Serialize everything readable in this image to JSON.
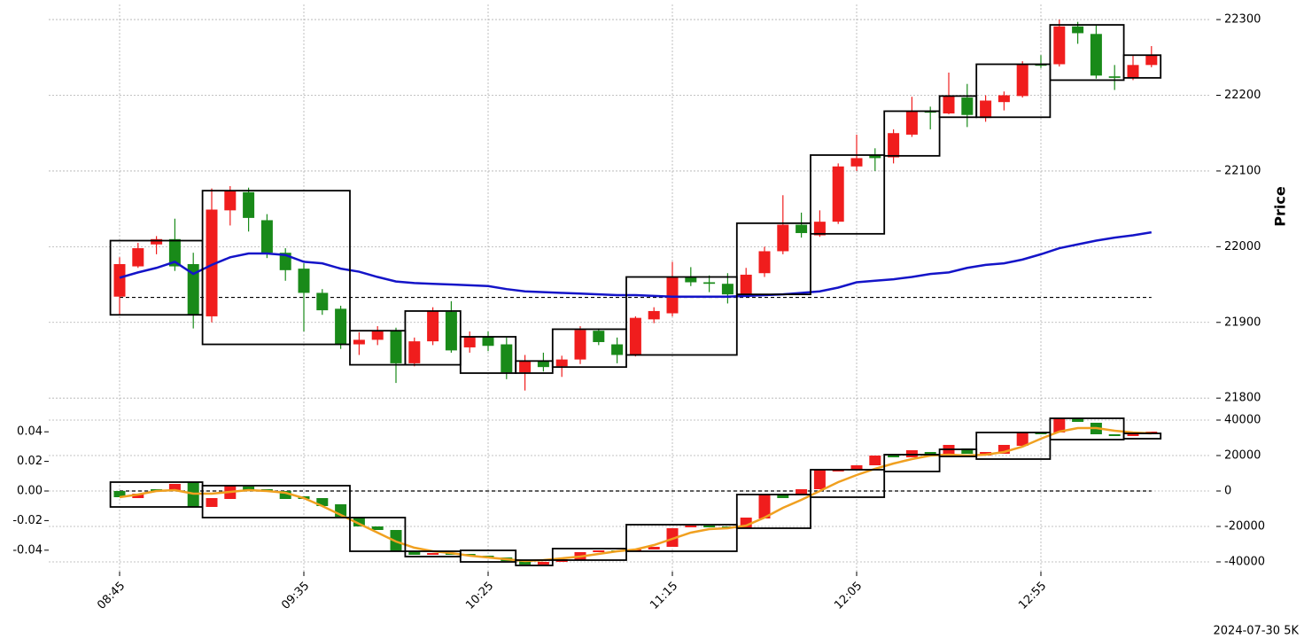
{
  "footer": "2024-07-30 5K",
  "chart_data": [
    {
      "type": "candlestick",
      "ylabel": "Price",
      "up_color": "#f01d1d",
      "down_color": "#198a19",
      "grid": true,
      "ylim": [
        21785,
        22320
      ],
      "yticks": [
        21800,
        21900,
        22000,
        22100,
        22200,
        22300
      ],
      "open": [
        21934,
        21974,
        22003,
        22010,
        21977,
        21908,
        22048,
        22072,
        22035,
        21992,
        21971,
        21939,
        21918,
        21871,
        21877,
        21889,
        21846,
        21875,
        21914,
        21867,
        21881,
        21871,
        21834,
        21849,
        21842,
        21851,
        21889,
        21871,
        21857,
        21904,
        21912,
        21960,
        21953,
        21951,
        21937,
        21965,
        21994,
        22029,
        22015,
        22033,
        22106,
        22121,
        22118,
        22148,
        22179,
        22176,
        22197,
        22170,
        22191,
        22199,
        22241,
        22241,
        22291,
        22281,
        22225,
        22223,
        22240
      ],
      "high": [
        21986,
        22005,
        22014,
        22037,
        21992,
        22077,
        22080,
        22078,
        22043,
        21998,
        21978,
        21944,
        21922,
        21887,
        21895,
        21893,
        21880,
        21920,
        21928,
        21888,
        21888,
        21880,
        21857,
        21860,
        21856,
        21895,
        21892,
        21880,
        21908,
        21920,
        21980,
        21973,
        21962,
        21965,
        21972,
        22000,
        22068,
        22045,
        22048,
        22110,
        22148,
        22130,
        22155,
        22198,
        22185,
        22230,
        22215,
        22200,
        22205,
        22245,
        22253,
        22300,
        22297,
        22292,
        22240,
        22252,
        22265
      ],
      "low": [
        21910,
        21972,
        21990,
        21968,
        21892,
        21900,
        22028,
        22020,
        21985,
        21955,
        21888,
        21910,
        21865,
        21857,
        21870,
        21820,
        21842,
        21870,
        21860,
        21860,
        21862,
        21825,
        21810,
        21835,
        21828,
        21845,
        21870,
        21846,
        21855,
        21899,
        21908,
        21948,
        21940,
        21925,
        21935,
        21960,
        21990,
        22012,
        22013,
        22030,
        22100,
        22100,
        22110,
        22145,
        22155,
        22175,
        22158,
        22165,
        22180,
        22197,
        22236,
        22238,
        22268,
        22222,
        22207,
        22220,
        22237
      ],
      "close": [
        21977,
        21998,
        22010,
        21974,
        21910,
        22049,
        22073,
        22038,
        21992,
        21969,
        21939,
        21916,
        21871,
        21877,
        21889,
        21846,
        21875,
        21915,
        21863,
        21881,
        21869,
        21834,
        21849,
        21841,
        21851,
        21890,
        21874,
        21857,
        21906,
        21915,
        21960,
        21953,
        21951,
        21937,
        21963,
        21994,
        22029,
        22018,
        22033,
        22106,
        22117,
        22117,
        22150,
        22179,
        22177,
        22199,
        22174,
        22193,
        22200,
        22241,
        22239,
        22291,
        22282,
        22226,
        22223,
        22240,
        22253
      ],
      "ma": {
        "color": "#1414c8",
        "values": [
          21959,
          21966,
          21972,
          21980,
          21964,
          21976,
          21986,
          21991,
          21991,
          21989,
          21980,
          21978,
          21971,
          21967,
          21960,
          21954,
          21952,
          21951,
          21950,
          21949,
          21948,
          21944,
          21941,
          21940,
          21939,
          21938,
          21937,
          21936,
          21936,
          21935,
          21934,
          21934,
          21934,
          21934,
          21935,
          21936,
          21937,
          21939,
          21941,
          21946,
          21953,
          21955,
          21957,
          21960,
          21964,
          21966,
          21972,
          21976,
          21978,
          21983,
          21990,
          21998,
          22003,
          22008,
          22012,
          22015,
          22019
        ]
      },
      "hline": 21933,
      "boxes": [
        {
          "start": 0,
          "end": 4,
          "top": 22008,
          "bottom": 21910
        },
        {
          "start": 5,
          "end": 12,
          "top": 22074,
          "bottom": 21871
        },
        {
          "start": 13,
          "end": 15,
          "top": 21889,
          "bottom": 21844
        },
        {
          "start": 16,
          "end": 18,
          "top": 21915,
          "bottom": 21844
        },
        {
          "start": 19,
          "end": 21,
          "top": 21881,
          "bottom": 21833
        },
        {
          "start": 22,
          "end": 23,
          "top": 21849,
          "bottom": 21833
        },
        {
          "start": 24,
          "end": 27,
          "top": 21891,
          "bottom": 21841
        },
        {
          "start": 28,
          "end": 33,
          "top": 21960,
          "bottom": 21857
        },
        {
          "start": 34,
          "end": 37,
          "top": 22031,
          "bottom": 21937
        },
        {
          "start": 38,
          "end": 41,
          "top": 22121,
          "bottom": 22017
        },
        {
          "start": 42,
          "end": 44,
          "top": 22179,
          "bottom": 22120
        },
        {
          "start": 45,
          "end": 46,
          "top": 22199,
          "bottom": 22171
        },
        {
          "start": 47,
          "end": 50,
          "top": 22241,
          "bottom": 22171
        },
        {
          "start": 51,
          "end": 54,
          "top": 22293,
          "bottom": 22220
        },
        {
          "start": 55,
          "end": 56,
          "top": 22253,
          "bottom": 22223
        }
      ]
    },
    {
      "type": "candlestick",
      "categories": [
        "08:45",
        null,
        null,
        null,
        null,
        null,
        null,
        null,
        null,
        null,
        "09:35",
        null,
        null,
        null,
        null,
        null,
        null,
        null,
        null,
        null,
        "10:25",
        null,
        null,
        null,
        null,
        null,
        null,
        null,
        null,
        null,
        "11:15",
        null,
        null,
        null,
        null,
        null,
        null,
        null,
        null,
        null,
        "12:05",
        null,
        null,
        null,
        null,
        null,
        null,
        null,
        null,
        null,
        "12:55",
        null,
        null,
        null,
        null,
        null,
        null
      ],
      "up_color": "#f01d1d",
      "down_color": "#198a19",
      "grid": true,
      "ylim": [
        -0.0545,
        0.0545
      ],
      "yticks": [
        0.04,
        0.02,
        {
          "value": 0,
          "label": "0.00"
        },
        -0.02,
        -0.04
      ],
      "y2lim": [
        -45500,
        45500
      ],
      "y2ticks": [
        40000,
        20000,
        0,
        -20000,
        -40000
      ],
      "axis": "y2",
      "open": [
        0,
        -4000,
        1000,
        0,
        5000,
        -9000,
        -4500,
        2500,
        1000,
        0,
        -3000,
        -4000,
        -7500,
        -15000,
        -20000,
        -22000,
        -34000,
        -36000,
        -35000,
        -35500,
        -36500,
        -37500,
        -39500,
        -41500,
        -40000,
        -39000,
        -34500,
        -33500,
        -34000,
        -33000,
        -31500,
        -20500,
        -19500,
        -20000,
        -21000,
        -15500,
        -2000,
        -2000,
        1000,
        11000,
        12000,
        14500,
        20500,
        19000,
        22000,
        20000,
        24000,
        20000,
        21000,
        25500,
        33000,
        33000,
        41000,
        38500,
        32000,
        31000,
        32500
      ],
      "close": [
        -3500,
        -1500,
        0,
        4000,
        -9000,
        -4000,
        3000,
        500,
        0,
        -4500,
        -4500,
        -8500,
        -14500,
        -20000,
        -22000,
        -34000,
        -36000,
        -35000,
        -36000,
        -36500,
        -37500,
        -39500,
        -41500,
        -40000,
        -38500,
        -34500,
        -33500,
        -34000,
        -33000,
        -31500,
        -21000,
        -19500,
        -20500,
        -21000,
        -15000,
        -2000,
        -4000,
        1000,
        12000,
        12000,
        14500,
        20000,
        19000,
        23000,
        20000,
        26000,
        21000,
        22000,
        26000,
        33000,
        32000,
        41000,
        39000,
        32000,
        31000,
        33000,
        33500
      ],
      "line": {
        "color": "#f0a020",
        "axis": "y2",
        "values": [
          -3500,
          -2000,
          0,
          500,
          -1500,
          -1500,
          -500,
          500,
          0,
          -1000,
          -4000,
          -8500,
          -13500,
          -18500,
          -23500,
          -28500,
          -32000,
          -34000,
          -35000,
          -36500,
          -37500,
          -38500,
          -39500,
          -39000,
          -38000,
          -37000,
          -35500,
          -34000,
          -33000,
          -30500,
          -27000,
          -23500,
          -21500,
          -21000,
          -19500,
          -15000,
          -9500,
          -5000,
          0,
          5000,
          9000,
          12500,
          15500,
          18000,
          20000,
          20500,
          20000,
          20500,
          22000,
          25000,
          29500,
          33500,
          35500,
          35500,
          34000,
          33000,
          32500
        ]
      },
      "hline": 0,
      "boxes": [
        {
          "start": 0,
          "end": 4,
          "top": 5000,
          "bottom": -9000
        },
        {
          "start": 5,
          "end": 12,
          "top": 3000,
          "bottom": -15000
        },
        {
          "start": 13,
          "end": 15,
          "top": -15000,
          "bottom": -34000
        },
        {
          "start": 16,
          "end": 18,
          "top": -34000,
          "bottom": -37000
        },
        {
          "start": 19,
          "end": 21,
          "top": -33500,
          "bottom": -40000
        },
        {
          "start": 22,
          "end": 23,
          "top": -39000,
          "bottom": -42000
        },
        {
          "start": 24,
          "end": 27,
          "top": -32500,
          "bottom": -39000
        },
        {
          "start": 28,
          "end": 33,
          "top": -19000,
          "bottom": -34000
        },
        {
          "start": 34,
          "end": 37,
          "top": -2000,
          "bottom": -21000
        },
        {
          "start": 38,
          "end": 41,
          "top": 12000,
          "bottom": -3500
        },
        {
          "start": 42,
          "end": 44,
          "top": 20500,
          "bottom": 11000
        },
        {
          "start": 45,
          "end": 46,
          "top": 23500,
          "bottom": 19500
        },
        {
          "start": 47,
          "end": 50,
          "top": 33000,
          "bottom": 18000
        },
        {
          "start": 51,
          "end": 54,
          "top": 41000,
          "bottom": 29000
        },
        {
          "start": 55,
          "end": 56,
          "top": 32500,
          "bottom": 29500
        }
      ]
    }
  ]
}
